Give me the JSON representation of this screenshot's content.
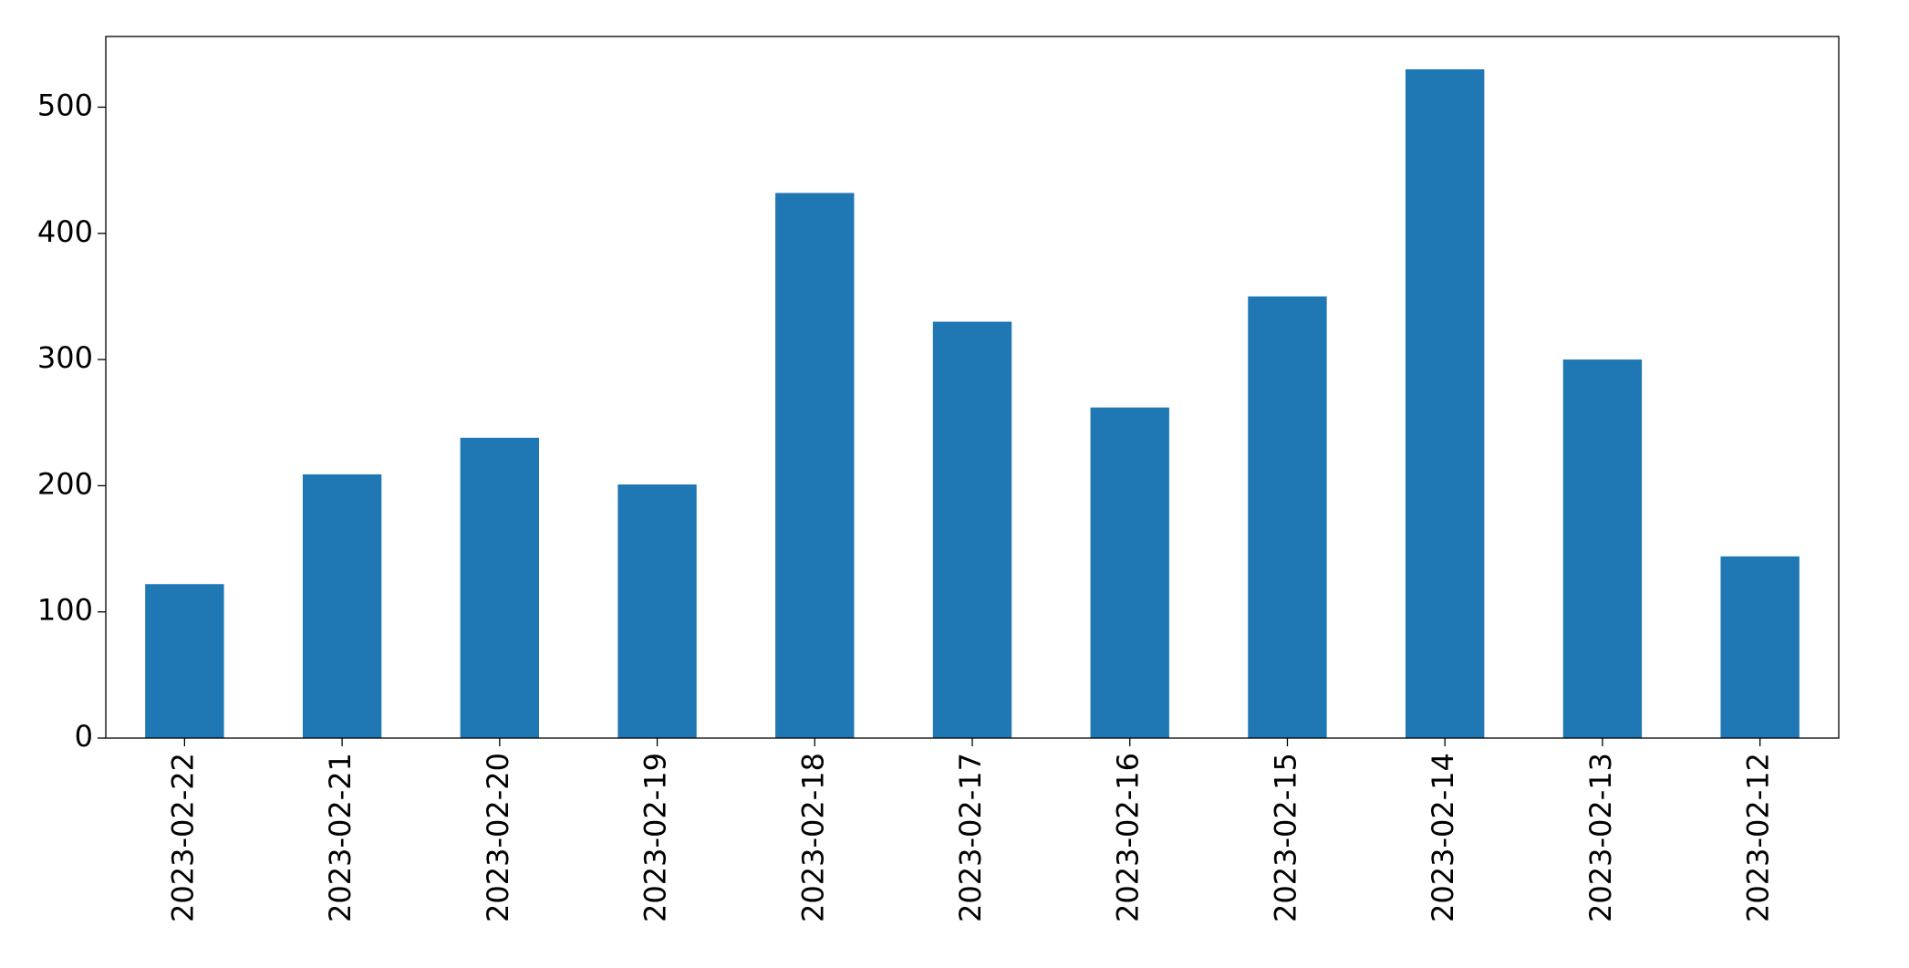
{
  "chart_data": {
    "type": "bar",
    "categories": [
      "2023-02-22",
      "2023-02-21",
      "2023-02-20",
      "2023-02-19",
      "2023-02-18",
      "2023-02-17",
      "2023-02-16",
      "2023-02-15",
      "2023-02-14",
      "2023-02-13",
      "2023-02-12"
    ],
    "values": [
      122,
      209,
      238,
      201,
      432,
      330,
      262,
      350,
      530,
      300,
      144
    ],
    "color": "#1f77b4",
    "ylim": [
      0,
      556
    ],
    "yticks": [
      0,
      100,
      200,
      300,
      400,
      500
    ],
    "grid": false
  }
}
